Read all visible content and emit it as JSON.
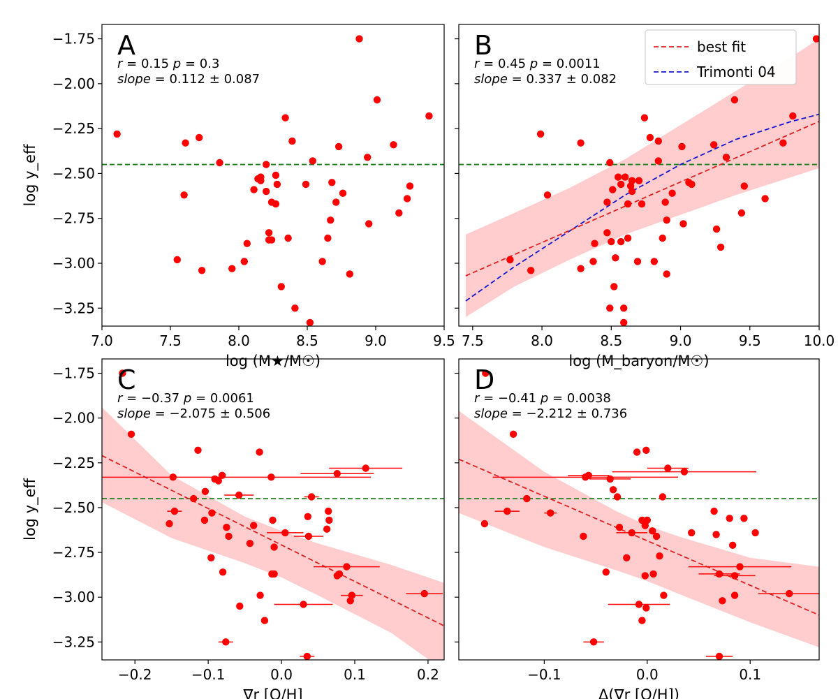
{
  "colors": {
    "points": "#ff0000",
    "hline": "#1a7f1a",
    "fit": "#e02020",
    "band": "#ffc8c8",
    "trimonti": "#1515cc",
    "axis": "#000000"
  },
  "legend": {
    "best_fit": "best fit",
    "trimonti": "Trimonti 04"
  },
  "chart_data": [
    {
      "id": "A",
      "type": "scatter",
      "panel_label": "A",
      "stats_line1": "r = 0.15  p = 0.3",
      "stats_line2": "slope = 0.112 ± 0.087",
      "xlabel": "log (M★/M☉)",
      "ylabel": "log y_eff",
      "xlim": [
        7.0,
        9.5
      ],
      "ylim": [
        -3.35,
        -1.67
      ],
      "xticks": [
        7.0,
        7.5,
        8.0,
        8.5,
        9.0,
        9.5
      ],
      "xtick_labels": [
        "7.0",
        "7.5",
        "8.0",
        "8.5",
        "9.0",
        "9.5"
      ],
      "yticks": [
        -1.75,
        -2.0,
        -2.25,
        -2.5,
        -2.75,
        -3.0,
        -3.25
      ],
      "ytick_labels": [
        "−1.75",
        "−2.00",
        "−2.25",
        "−2.50",
        "−2.75",
        "−3.00",
        "−3.25"
      ],
      "hline": -2.45,
      "points": [
        [
          7.11,
          -2.28
        ],
        [
          7.55,
          -2.98
        ],
        [
          7.6,
          -2.62
        ],
        [
          7.61,
          -2.33
        ],
        [
          7.71,
          -2.3
        ],
        [
          7.73,
          -3.04
        ],
        [
          7.86,
          -2.44
        ],
        [
          7.95,
          -3.03
        ],
        [
          8.04,
          -2.99
        ],
        [
          8.06,
          -2.89
        ],
        [
          8.11,
          -2.59
        ],
        [
          8.14,
          -2.53
        ],
        [
          8.16,
          -2.52
        ],
        [
          8.16,
          -2.54
        ],
        [
          8.2,
          -2.45
        ],
        [
          8.2,
          -2.6
        ],
        [
          8.22,
          -2.83
        ],
        [
          8.22,
          -2.87
        ],
        [
          8.24,
          -2.87
        ],
        [
          8.24,
          -2.66
        ],
        [
          8.27,
          -2.51
        ],
        [
          8.28,
          -2.56
        ],
        [
          8.27,
          -2.67
        ],
        [
          8.31,
          -3.13
        ],
        [
          8.34,
          -2.19
        ],
        [
          8.36,
          -2.86
        ],
        [
          8.39,
          -2.32
        ],
        [
          8.41,
          -3.25
        ],
        [
          8.49,
          -2.56
        ],
        [
          8.52,
          -3.33
        ],
        [
          8.54,
          -2.43
        ],
        [
          8.61,
          -2.99
        ],
        [
          8.65,
          -2.86
        ],
        [
          8.67,
          -2.76
        ],
        [
          8.68,
          -2.55
        ],
        [
          8.71,
          -2.66
        ],
        [
          8.73,
          -2.35
        ],
        [
          8.76,
          -2.61
        ],
        [
          8.81,
          -3.06
        ],
        [
          8.88,
          -1.75
        ],
        [
          9.01,
          -2.09
        ],
        [
          8.94,
          -2.41
        ],
        [
          8.95,
          -2.78
        ],
        [
          9.13,
          -2.34
        ],
        [
          9.17,
          -2.72
        ],
        [
          9.23,
          -2.64
        ],
        [
          9.25,
          -2.57
        ],
        [
          9.39,
          -2.18
        ]
      ]
    },
    {
      "id": "B",
      "type": "scatter",
      "panel_label": "B",
      "stats_line1": "r = 0.45  p = 0.0011",
      "stats_line2": "slope = 0.337 ± 0.082",
      "xlabel": "log (M_baryon/M☉)",
      "ylabel": "",
      "xlim": [
        7.4,
        10.0
      ],
      "ylim": [
        -3.35,
        -1.67
      ],
      "xticks": [
        7.5,
        8.0,
        8.5,
        9.0,
        9.5,
        10.0
      ],
      "xtick_labels": [
        "7.5",
        "8.0",
        "8.5",
        "9.0",
        "9.5",
        "10.0"
      ],
      "yticks": [
        -1.75,
        -2.0,
        -2.25,
        -2.5,
        -2.75,
        -3.0,
        -3.25
      ],
      "ytick_labels": [
        "",
        "",
        "",
        "",
        "",
        "",
        ""
      ],
      "hline": -2.45,
      "fit": {
        "x": [
          7.45,
          10.0
        ],
        "y": [
          -3.07,
          -2.21
        ]
      },
      "band": {
        "x": [
          7.45,
          7.8,
          8.2,
          8.6,
          9.0,
          9.4,
          9.8,
          10.0
        ],
        "upper": [
          -2.84,
          -2.72,
          -2.58,
          -2.42,
          -2.23,
          -2.04,
          -1.85,
          -1.75
        ],
        "lower": [
          -3.3,
          -3.13,
          -2.98,
          -2.84,
          -2.73,
          -2.62,
          -2.52,
          -2.47
        ]
      },
      "trimonti": {
        "x": [
          7.45,
          7.8,
          8.2,
          8.6,
          9.0,
          9.4,
          9.8,
          10.0
        ],
        "y": [
          -3.21,
          -3.02,
          -2.82,
          -2.62,
          -2.45,
          -2.31,
          -2.21,
          -2.17
        ]
      },
      "points": [
        [
          7.77,
          -2.98
        ],
        [
          7.92,
          -3.04
        ],
        [
          7.99,
          -2.28
        ],
        [
          8.04,
          -2.62
        ],
        [
          8.28,
          -2.33
        ],
        [
          8.28,
          -3.03
        ],
        [
          8.37,
          -2.99
        ],
        [
          8.38,
          -2.89
        ],
        [
          8.47,
          -2.66
        ],
        [
          8.47,
          -2.83
        ],
        [
          8.49,
          -2.44
        ],
        [
          8.49,
          -3.25
        ],
        [
          8.51,
          -2.59
        ],
        [
          8.52,
          -3.13
        ],
        [
          8.5,
          -2.88
        ],
        [
          8.53,
          -2.97
        ],
        [
          8.55,
          -2.52
        ],
        [
          8.57,
          -2.56
        ],
        [
          8.57,
          -2.88
        ],
        [
          8.59,
          -3.25
        ],
        [
          8.59,
          -3.33
        ],
        [
          8.6,
          -2.52
        ],
        [
          8.62,
          -2.86
        ],
        [
          8.62,
          -2.67
        ],
        [
          8.64,
          -2.57
        ],
        [
          8.65,
          -2.54
        ],
        [
          8.65,
          -2.6
        ],
        [
          8.69,
          -2.99
        ],
        [
          8.7,
          -2.54
        ],
        [
          8.72,
          -2.67
        ],
        [
          8.74,
          -2.19
        ],
        [
          8.78,
          -2.3
        ],
        [
          8.81,
          -2.99
        ],
        [
          8.84,
          -2.43
        ],
        [
          8.84,
          -2.32
        ],
        [
          8.87,
          -2.86
        ],
        [
          8.89,
          -2.66
        ],
        [
          8.9,
          -2.76
        ],
        [
          8.9,
          -3.06
        ],
        [
          8.94,
          -2.61
        ],
        [
          9.01,
          -2.35
        ],
        [
          9.02,
          -2.78
        ],
        [
          9.06,
          -2.55
        ],
        [
          9.08,
          -2.56
        ],
        [
          9.24,
          -2.34
        ],
        [
          9.26,
          -2.81
        ],
        [
          9.29,
          -2.91
        ],
        [
          9.33,
          -2.41
        ],
        [
          9.39,
          -2.09
        ],
        [
          9.44,
          -2.72
        ],
        [
          9.46,
          -2.57
        ],
        [
          9.61,
          -2.64
        ],
        [
          9.74,
          -2.33
        ],
        [
          9.81,
          -2.18
        ],
        [
          9.98,
          -1.75
        ]
      ]
    },
    {
      "id": "C",
      "type": "scatter",
      "panel_label": "C",
      "stats_line1": "r = −0.37  p = 0.0061",
      "stats_line2": "slope = −2.075 ± 0.506",
      "xlabel": "∇r [O/H]",
      "ylabel": "log y_eff",
      "xlim": [
        -0.245,
        0.222
      ],
      "ylim": [
        -3.35,
        -1.67
      ],
      "xticks": [
        -0.2,
        -0.1,
        0.0,
        0.1,
        0.2
      ],
      "xtick_labels": [
        "−0.2",
        "−0.1",
        "0.0",
        "0.1",
        "0.2"
      ],
      "yticks": [
        -1.75,
        -2.0,
        -2.25,
        -2.5,
        -2.75,
        -3.0,
        -3.25
      ],
      "ytick_labels": [
        "−1.75",
        "−2.00",
        "−2.25",
        "−2.50",
        "−2.75",
        "−3.00",
        "−3.25"
      ],
      "hline": -2.45,
      "fit": {
        "x": [
          -0.245,
          0.222
        ],
        "y": [
          -2.21,
          -3.16
        ]
      },
      "band": {
        "x": [
          -0.245,
          -0.15,
          -0.05,
          0.0,
          0.05,
          0.15,
          0.222
        ],
        "upper": [
          -1.94,
          -2.32,
          -2.55,
          -2.63,
          -2.7,
          -2.82,
          -2.92
        ],
        "lower": [
          -2.47,
          -2.67,
          -2.81,
          -2.89,
          -2.99,
          -3.2,
          -3.41
        ]
      },
      "points": [
        [
          -0.217,
          -1.75,
          0
        ],
        [
          -0.205,
          -2.09,
          0
        ],
        [
          -0.153,
          -2.59,
          0
        ],
        [
          -0.148,
          -2.33,
          0.27
        ],
        [
          -0.146,
          -2.52,
          0.01
        ],
        [
          -0.114,
          -2.18,
          0
        ],
        [
          -0.12,
          -2.45,
          0
        ],
        [
          -0.105,
          -2.57,
          0
        ],
        [
          -0.104,
          -2.41,
          0
        ],
        [
          -0.095,
          -2.53,
          0
        ],
        [
          -0.091,
          -2.34,
          0
        ],
        [
          -0.086,
          -2.35,
          0
        ],
        [
          -0.081,
          -2.32,
          0
        ],
        [
          -0.08,
          -2.86,
          0
        ],
        [
          -0.075,
          -2.61,
          0
        ],
        [
          -0.072,
          -2.66,
          0
        ],
        [
          -0.076,
          -3.25,
          0.01
        ],
        [
          -0.096,
          -2.78,
          0
        ],
        [
          -0.057,
          -3.05,
          0
        ],
        [
          -0.058,
          -2.43,
          0.02
        ],
        [
          -0.043,
          -2.7,
          0
        ],
        [
          -0.038,
          -2.6,
          0
        ],
        [
          -0.03,
          -2.19,
          0
        ],
        [
          -0.029,
          -2.99,
          0
        ],
        [
          -0.023,
          -3.13,
          0
        ],
        [
          -0.014,
          -2.33,
          0
        ],
        [
          -0.013,
          -2.87,
          0
        ],
        [
          -0.012,
          -2.57,
          0
        ],
        [
          -0.01,
          -2.72,
          0
        ],
        [
          -0.01,
          -2.87,
          0
        ],
        [
          0.005,
          -2.64,
          0.025
        ],
        [
          0.03,
          -3.04,
          0.04
        ],
        [
          0.036,
          -2.55,
          0
        ],
        [
          0.037,
          -2.66,
          0.02
        ],
        [
          0.041,
          -2.44,
          0.01
        ],
        [
          0.035,
          -3.33,
          0.01
        ],
        [
          0.062,
          -2.62,
          0
        ],
        [
          0.064,
          -2.52,
          0
        ],
        [
          0.065,
          -2.57,
          0
        ],
        [
          0.076,
          -2.88,
          0
        ],
        [
          0.076,
          -2.31,
          0.05
        ],
        [
          0.079,
          -2.87,
          0
        ],
        [
          0.089,
          -2.83,
          0.045
        ],
        [
          0.094,
          -3.02,
          0
        ],
        [
          0.096,
          -2.99,
          0.015
        ],
        [
          0.115,
          -2.28,
          0.05
        ],
        [
          0.195,
          -2.98,
          0.025
        ]
      ]
    },
    {
      "id": "D",
      "type": "scatter",
      "panel_label": "D",
      "stats_line1": "r = −0.41  p = 0.0038",
      "stats_line2": "slope = −2.212 ± 0.736",
      "xlabel": "Δ(∇r [O/H])",
      "ylabel": "",
      "xlim": [
        -0.183,
        0.167
      ],
      "ylim": [
        -3.35,
        -1.67
      ],
      "xticks": [
        -0.1,
        0.0,
        0.1
      ],
      "xtick_labels": [
        "−0.1",
        "0.0",
        "0.1"
      ],
      "yticks": [
        -1.75,
        -2.0,
        -2.25,
        -2.5,
        -2.75,
        -3.0,
        -3.25
      ],
      "ytick_labels": [
        "",
        "",
        "",
        "",
        "",
        "",
        ""
      ],
      "hline": -2.45,
      "fit": {
        "x": [
          -0.183,
          0.167
        ],
        "y": [
          -2.23,
          -3.1
        ]
      },
      "band": {
        "x": [
          -0.183,
          -0.1,
          -0.03,
          0.0,
          0.03,
          0.1,
          0.167
        ],
        "upper": [
          -1.96,
          -2.3,
          -2.52,
          -2.6,
          -2.66,
          -2.78,
          -2.83
        ],
        "lower": [
          -2.53,
          -2.72,
          -2.85,
          -2.91,
          -2.98,
          -3.14,
          -3.28
        ]
      },
      "points": [
        [
          -0.157,
          -1.75,
          0
        ],
        [
          -0.158,
          -2.59,
          0
        ],
        [
          -0.13,
          -2.09,
          0
        ],
        [
          -0.136,
          -2.52,
          0.012
        ],
        [
          -0.117,
          -2.45,
          0
        ],
        [
          -0.094,
          -2.53,
          0.006
        ],
        [
          -0.06,
          -2.33,
          0.09
        ],
        [
          -0.057,
          -2.32,
          0.02
        ],
        [
          -0.062,
          -2.66,
          0
        ],
        [
          -0.052,
          -3.25,
          0.01
        ],
        [
          -0.04,
          -2.86,
          0
        ],
        [
          -0.036,
          -2.34,
          0.02
        ],
        [
          -0.033,
          -2.4,
          0
        ],
        [
          -0.029,
          -2.44,
          0
        ],
        [
          -0.027,
          -2.61,
          0
        ],
        [
          -0.02,
          -2.78,
          0
        ],
        [
          -0.015,
          -2.64,
          0.015
        ],
        [
          -0.01,
          -2.19,
          0
        ],
        [
          -0.008,
          -3.04,
          0.03
        ],
        [
          -0.005,
          -2.57,
          0
        ],
        [
          -0.005,
          -3.13,
          0
        ],
        [
          0.0,
          -2.57,
          0
        ],
        [
          -0.002,
          -2.6,
          0
        ],
        [
          -0.002,
          -2.88,
          0
        ],
        [
          -0.001,
          -2.18,
          0
        ],
        [
          -0.001,
          -3.06,
          0
        ],
        [
          0.005,
          -2.63,
          0
        ],
        [
          0.006,
          -2.87,
          0
        ],
        [
          0.009,
          -2.66,
          0
        ],
        [
          0.012,
          -2.77,
          0
        ],
        [
          0.015,
          -2.44,
          0
        ],
        [
          0.016,
          -2.99,
          0
        ],
        [
          0.02,
          -2.28,
          0.02
        ],
        [
          0.036,
          -2.3,
          0.07
        ],
        [
          0.043,
          -2.64,
          0
        ],
        [
          0.065,
          -2.52,
          0
        ],
        [
          0.067,
          -2.65,
          0
        ],
        [
          0.07,
          -2.87,
          0.02
        ],
        [
          0.07,
          -3.33,
          0.013
        ],
        [
          0.073,
          -3.02,
          0
        ],
        [
          0.08,
          -2.56,
          0
        ],
        [
          0.083,
          -2.71,
          0
        ],
        [
          0.085,
          -2.99,
          0
        ],
        [
          0.085,
          -2.88,
          0.02
        ],
        [
          0.094,
          -2.56,
          0
        ],
        [
          0.09,
          -2.83,
          0.05
        ],
        [
          0.105,
          -2.64,
          0
        ],
        [
          0.138,
          -2.98,
          0.03
        ]
      ]
    }
  ]
}
